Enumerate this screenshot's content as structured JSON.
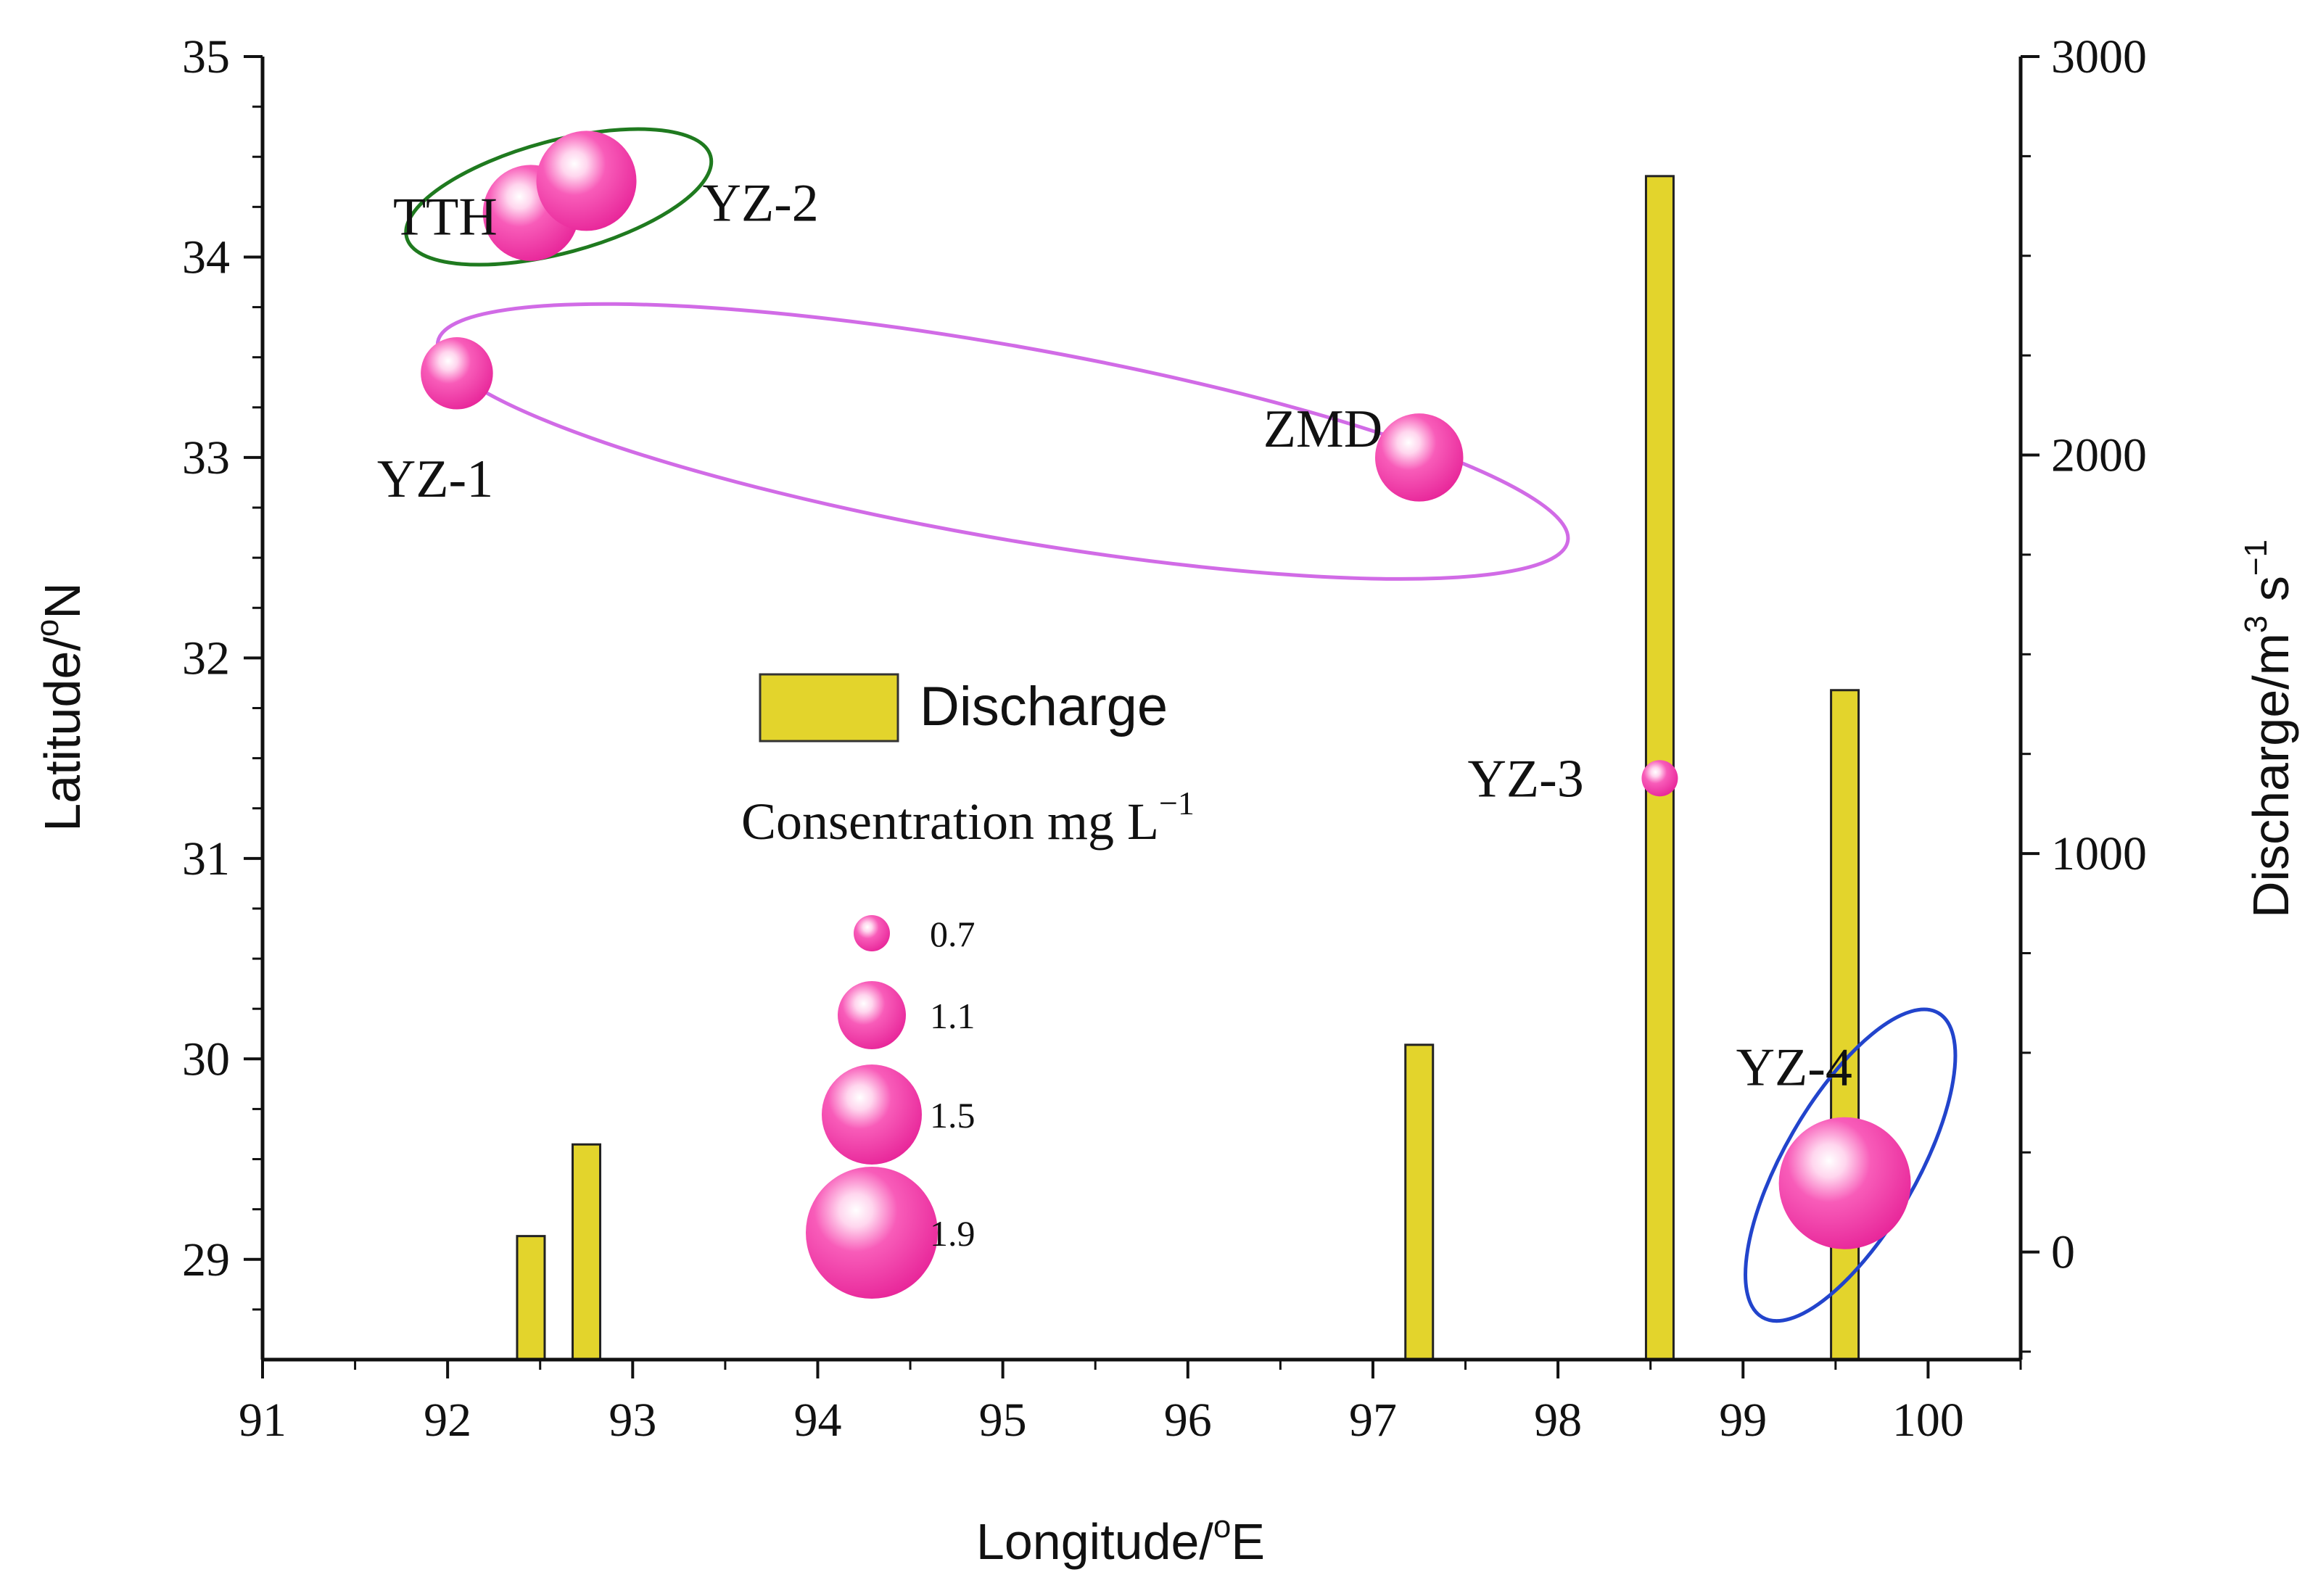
{
  "chart_data": {
    "type": "bubble-bar-combo",
    "x_axis": {
      "label": "Longitude/",
      "label_sup": "o",
      "label_suffix": "E",
      "range": [
        91,
        100.5
      ],
      "ticks": [
        91,
        92,
        93,
        94,
        95,
        96,
        97,
        98,
        99,
        100
      ],
      "tick_labels": [
        "91",
        "92",
        "93",
        "94",
        "95",
        "96",
        "97",
        "98",
        "99",
        "100"
      ]
    },
    "y_axis_left": {
      "label": "Latitude/",
      "label_sup": "o",
      "label_suffix": "N",
      "range": [
        28.5,
        35
      ],
      "ticks": [
        29,
        30,
        31,
        32,
        33,
        34,
        35
      ],
      "tick_labels": [
        "29",
        "30",
        "31",
        "32",
        "33",
        "34",
        "35"
      ]
    },
    "y_axis_right": {
      "label": "Discharge/m",
      "label_sup": "3",
      "label_mid": " s",
      "label_sup2": "−1",
      "range": [
        -270,
        3000
      ],
      "ticks": [
        0,
        1000,
        2000,
        3000
      ],
      "tick_labels": [
        "0",
        "1000",
        "2000",
        "3000"
      ]
    },
    "bars": {
      "name": "Discharge",
      "color": "#e3d42c",
      "items": [
        {
          "x": 92.45,
          "value": 40
        },
        {
          "x": 92.75,
          "value": 270
        },
        {
          "x": 97.25,
          "value": 520
        },
        {
          "x": 98.55,
          "value": 2700
        },
        {
          "x": 99.55,
          "value": 1410
        }
      ]
    },
    "bubbles": {
      "name": "Consentration mg L",
      "name_sup": "−1",
      "color": "#f23fa8",
      "items": [
        {
          "label": "TTH",
          "lon": 92.45,
          "lat": 34.22,
          "conc": 1.45
        },
        {
          "label": "YZ-2",
          "lon": 92.75,
          "lat": 34.38,
          "conc": 1.5
        },
        {
          "label": "YZ-1",
          "lon": 92.05,
          "lat": 33.42,
          "conc": 1.15
        },
        {
          "label": "ZMD",
          "lon": 97.25,
          "lat": 33.0,
          "conc": 1.35
        },
        {
          "label": "YZ-3",
          "lon": 98.55,
          "lat": 31.4,
          "conc": 0.7
        },
        {
          "label": "YZ-4",
          "lon": 99.55,
          "lat": 29.38,
          "conc": 1.9
        }
      ]
    },
    "ellipses": [
      {
        "name": "group-tth-yz2",
        "color": "#1f7a1f",
        "cx": 92.6,
        "cy": 34.3,
        "rlon": 0.85,
        "rlat": 0.28,
        "rotate": -15
      },
      {
        "name": "group-yz1-zmd",
        "color": "#d16be6",
        "cx": 95.0,
        "cy": 33.08,
        "rlon": 3.1,
        "rlat": 0.48,
        "rotate": 10
      },
      {
        "name": "group-yz4",
        "color": "#2244cc",
        "cx": 99.58,
        "cy": 29.47,
        "rlon": 0.95,
        "rlat": 0.33,
        "rotate": -60
      }
    ],
    "legend": {
      "bar_label": "Discharge",
      "size_title": "Consentration mg L",
      "size_title_sup": "−1",
      "sizes": [
        {
          "value": 0.7,
          "label": "0.7"
        },
        {
          "value": 1.1,
          "label": "1.1"
        },
        {
          "value": 1.5,
          "label": "1.5"
        },
        {
          "value": 1.9,
          "label": "1.9"
        }
      ]
    }
  }
}
